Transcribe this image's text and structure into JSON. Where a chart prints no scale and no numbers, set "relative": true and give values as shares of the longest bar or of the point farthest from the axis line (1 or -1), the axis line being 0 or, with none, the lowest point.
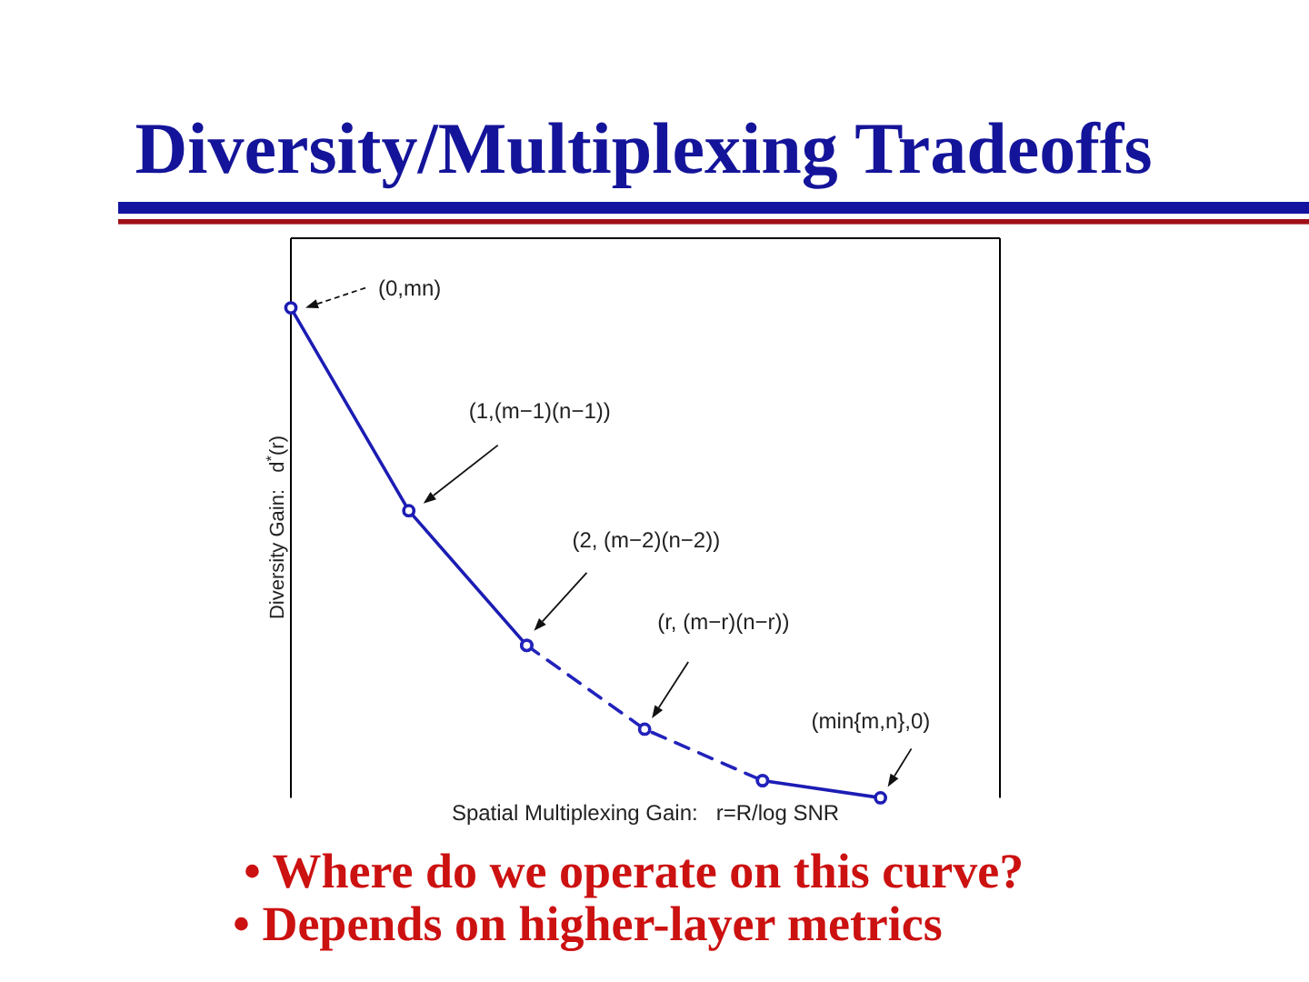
{
  "chart_data": {
    "type": "line",
    "title": "Diversity/Multiplexing Tradeoffs",
    "xlabel": "Spatial Multiplexing Gain:   r=R/log SNR",
    "ylabel": "Diversity Gain:   d$^{*}$(r)",
    "categories": [
      null,
      null,
      null,
      null,
      null,
      null
    ],
    "relative": true,
    "marker": "circle",
    "series": [
      {
        "color": "#1c1cb4",
        "line_style": "solid",
        "values": [
          1,
          0.586,
          0.311,
          null,
          0.035,
          0
        ]
      },
      {
        "color": "#2222bc",
        "line_style": "dashed",
        "values": [
          null,
          null,
          0.311,
          0.14,
          0.035,
          null
        ]
      }
    ],
    "annotations": [
      "(0,mn)",
      "(1,(m−1)(n−1))",
      "(2, (m−2)(n−2))",
      "(r, (m−r)(n−r))",
      "(min{m,n},0)",
      "• Where do we operate on this curve?",
      "• Depends on higher-layer metrics"
    ]
  }
}
